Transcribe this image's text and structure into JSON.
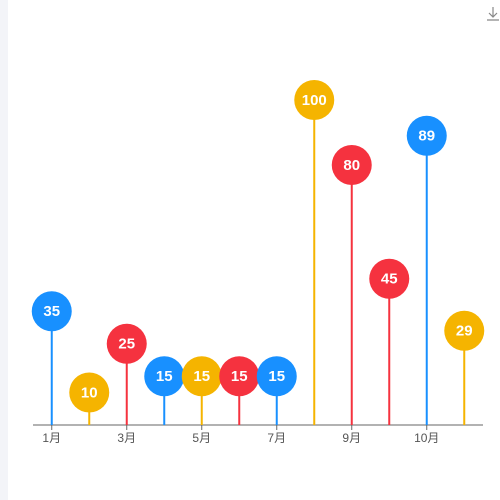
{
  "chart_data": {
    "type": "lollipop",
    "categories": [
      "1月",
      null,
      "3月",
      null,
      "5月",
      null,
      "7月",
      null,
      "9月",
      null,
      "10月",
      null
    ],
    "values": [
      35,
      10,
      25,
      15,
      15,
      15,
      15,
      100,
      80,
      45,
      89,
      29
    ],
    "colors": [
      "#1890ff",
      "#f5b400",
      "#f5323f",
      "#1890ff",
      "#f5b400",
      "#f5323f",
      "#1890ff",
      "#f5b400",
      "#f5323f",
      "#f5323f",
      "#1890ff",
      "#f5b400"
    ],
    "ylim": [
      0,
      100
    ]
  }
}
